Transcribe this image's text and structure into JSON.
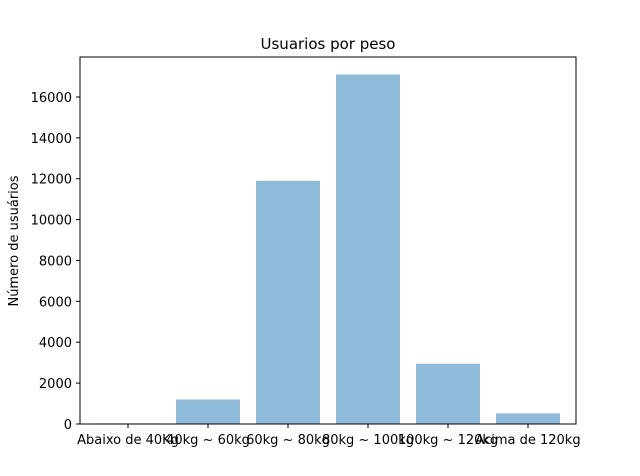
{
  "chart_data": {
    "type": "bar",
    "title": "Usuarios por peso",
    "xlabel": "",
    "ylabel": "Número de usuários",
    "categories": [
      "Abaixo de 40Kg",
      "40kg ~ 60kg",
      "60kg ~ 80kg",
      "80kg ~ 100kg",
      "100kg ~ 120kg",
      "Acima de 120kg"
    ],
    "values": [
      30,
      1200,
      11900,
      17100,
      2950,
      520
    ],
    "ylim": [
      0,
      17955
    ],
    "yticks": [
      0,
      2000,
      4000,
      6000,
      8000,
      10000,
      12000,
      14000,
      16000
    ],
    "bar_color": "#8fbad9",
    "grid": false
  }
}
